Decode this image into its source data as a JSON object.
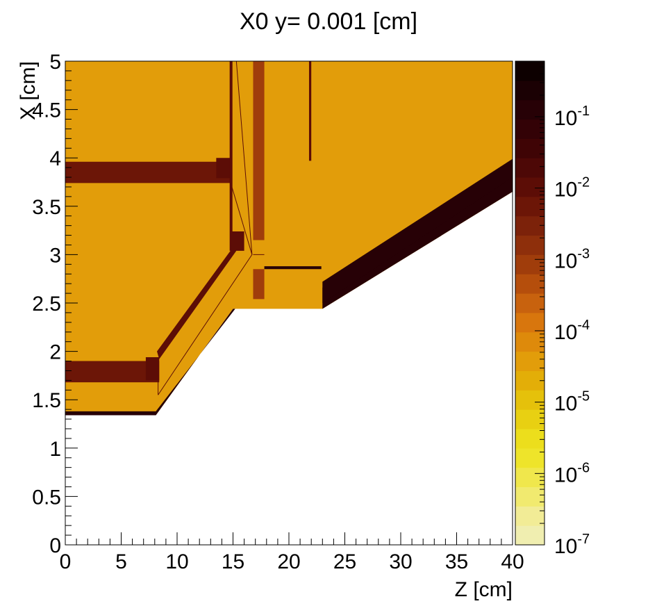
{
  "chart_data": {
    "type": "heatmap",
    "title": "X0 y=  0.001 [cm]",
    "xlabel": "Z [cm]",
    "ylabel": "X [cm]",
    "xlim": [
      0,
      40
    ],
    "ylim": [
      0,
      5
    ],
    "x_ticks": [
      "0",
      "5",
      "10",
      "15",
      "20",
      "25",
      "30",
      "35",
      "40"
    ],
    "y_ticks": [
      "0",
      "0.5",
      "1",
      "1.5",
      "2",
      "2.5",
      "3",
      "3.5",
      "4",
      "4.5",
      "5"
    ],
    "color_scale": {
      "log": true,
      "range": [
        1e-07,
        0.6
      ],
      "tick_exponents": [
        "-7",
        "-6",
        "-5",
        "-4",
        "-3",
        "-2",
        "-1"
      ],
      "tick_base": "10",
      "palette": [
        "#f0eeb0",
        "#f2ec96",
        "#f1ea6f",
        "#f0e74c",
        "#eee42a",
        "#ecde1c",
        "#e8d012",
        "#e5c10b",
        "#e3ae08",
        "#e29d0a",
        "#de8a0b",
        "#d8760d",
        "#c8620e",
        "#b54e0c",
        "#a03d0b",
        "#8e2f0b",
        "#7c220a",
        "#6c1607",
        "#5c0d06",
        "#4d0806",
        "#3f0405",
        "#330206",
        "#270106",
        "#1b0104",
        "#0d0000"
      ]
    },
    "background": {
      "value": 6e-05,
      "color": "#e29d0a"
    },
    "regions": [
      {
        "name": "outer-shell",
        "value": 0.05,
        "color": "#270106",
        "polygon": [
          [
            0,
            1.38
          ],
          [
            8.1,
            1.38
          ],
          [
            15.2,
            2.44
          ],
          [
            23.0,
            2.44
          ],
          [
            23.0,
            2.66
          ],
          [
            40,
            3.96
          ],
          [
            40,
            3.65
          ],
          [
            23.0,
            2.44
          ],
          [
            15.0,
            2.44
          ],
          [
            8.1,
            1.34
          ],
          [
            0,
            1.34
          ]
        ]
      },
      {
        "name": "shell-step",
        "value": 0.05,
        "color": "#270106",
        "polygon": [
          [
            23.0,
            2.5
          ],
          [
            23.0,
            2.72
          ],
          [
            40,
            3.99
          ],
          [
            40,
            3.8
          ]
        ]
      },
      {
        "name": "upper-bar",
        "value": 0.02,
        "color": "#6c1607",
        "polygon": [
          [
            0,
            3.74
          ],
          [
            14.8,
            3.74
          ],
          [
            14.8,
            3.96
          ],
          [
            0,
            3.96
          ]
        ]
      },
      {
        "name": "upper-bar-cap",
        "value": 0.03,
        "color": "#5c0d06",
        "polygon": [
          [
            13.5,
            3.79
          ],
          [
            14.8,
            3.79
          ],
          [
            14.8,
            4.0
          ],
          [
            13.5,
            4.0
          ]
        ]
      },
      {
        "name": "lower-bar",
        "value": 0.02,
        "color": "#6c1607",
        "polygon": [
          [
            0,
            1.68
          ],
          [
            8.4,
            1.68
          ],
          [
            8.4,
            1.9
          ],
          [
            0,
            1.9
          ]
        ]
      },
      {
        "name": "lower-bar-cap",
        "value": 0.03,
        "color": "#5c0d06",
        "polygon": [
          [
            7.2,
            1.7
          ],
          [
            8.4,
            1.7
          ],
          [
            8.4,
            1.94
          ],
          [
            7.2,
            1.94
          ]
        ]
      },
      {
        "name": "diagonal-wall",
        "value": 0.03,
        "color": "#5c0d06",
        "polygon": [
          [
            8.2,
            2.0
          ],
          [
            14.9,
            3.06
          ],
          [
            15.3,
            3.04
          ],
          [
            8.4,
            1.92
          ]
        ]
      },
      {
        "name": "vertical-post",
        "value": 0.03,
        "color": "#5c0d06",
        "polygon": [
          [
            14.7,
            3.04
          ],
          [
            14.95,
            3.04
          ],
          [
            14.95,
            5.0
          ],
          [
            14.7,
            5.0
          ]
        ]
      },
      {
        "name": "post-block",
        "value": 0.03,
        "color": "#5c0d06",
        "polygon": [
          [
            14.9,
            3.04
          ],
          [
            16.0,
            3.04
          ],
          [
            16.0,
            3.24
          ],
          [
            14.9,
            3.24
          ]
        ]
      },
      {
        "name": "orange-column-upper",
        "value": 0.001,
        "color": "#a03d0b",
        "polygon": [
          [
            16.8,
            3.15
          ],
          [
            17.8,
            3.15
          ],
          [
            17.8,
            5.0
          ],
          [
            16.8,
            5.0
          ]
        ]
      },
      {
        "name": "orange-column-lower",
        "value": 0.001,
        "color": "#a03d0b",
        "polygon": [
          [
            16.8,
            2.54
          ],
          [
            17.8,
            2.54
          ],
          [
            17.8,
            2.85
          ],
          [
            16.8,
            2.85
          ]
        ]
      },
      {
        "name": "thin-rod",
        "value": 0.03,
        "color": "#5c0d06",
        "polygon": [
          [
            21.8,
            3.97
          ],
          [
            22.0,
            3.97
          ],
          [
            22.0,
            5.0
          ],
          [
            21.8,
            5.0
          ]
        ]
      },
      {
        "name": "thin-plate",
        "value": 0.05,
        "color": "#270106",
        "polygon": [
          [
            17.8,
            2.85
          ],
          [
            22.9,
            2.85
          ],
          [
            22.9,
            2.88
          ],
          [
            17.8,
            2.88
          ]
        ]
      }
    ],
    "empty_region": {
      "name": "vacuum",
      "color": "#ffffff",
      "polygon": [
        [
          0,
          0
        ],
        [
          40,
          0
        ],
        [
          40,
          3.65
        ],
        [
          23.0,
          2.44
        ],
        [
          15.0,
          2.44
        ],
        [
          8.1,
          1.34
        ],
        [
          0,
          1.34
        ]
      ]
    }
  }
}
